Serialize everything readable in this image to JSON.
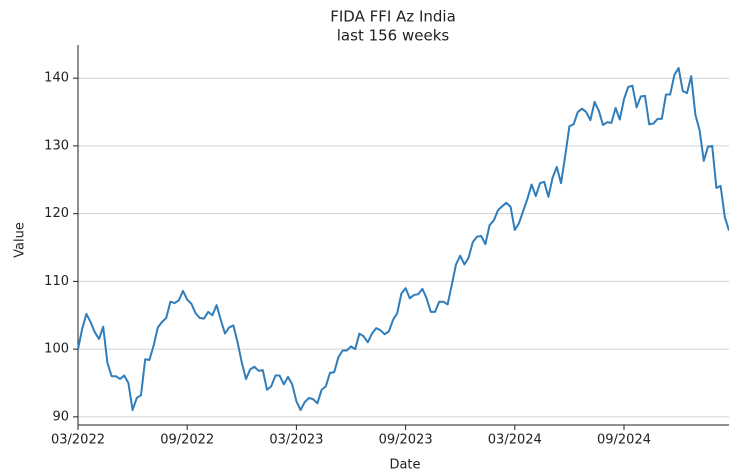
{
  "chart_data": {
    "type": "line",
    "title": "FIDA FFI Az India",
    "subtitle": "last 156 weeks",
    "xlabel": "Date",
    "ylabel": "Value",
    "color": "#2f7dbb",
    "grid": true,
    "ylim": [
      88.8,
      144.9
    ],
    "yticks": [
      90,
      100,
      110,
      120,
      130,
      140
    ],
    "categories": [
      "03/2022",
      null,
      null,
      null,
      null,
      null,
      null,
      null,
      null,
      null,
      null,
      null,
      null,
      null,
      null,
      null,
      null,
      null,
      null,
      null,
      null,
      null,
      null,
      null,
      null,
      null,
      "09/2022",
      null,
      null,
      null,
      null,
      null,
      null,
      null,
      null,
      null,
      null,
      null,
      null,
      null,
      null,
      null,
      null,
      null,
      null,
      null,
      null,
      null,
      null,
      null,
      null,
      null,
      "03/2023",
      null,
      null,
      null,
      null,
      null,
      null,
      null,
      null,
      null,
      null,
      null,
      null,
      null,
      null,
      null,
      null,
      null,
      null,
      null,
      null,
      null,
      null,
      null,
      null,
      null,
      "09/2023",
      null,
      null,
      null,
      null,
      null,
      null,
      null,
      null,
      null,
      null,
      null,
      null,
      null,
      null,
      null,
      null,
      null,
      null,
      null,
      null,
      null,
      null,
      null,
      null,
      null,
      "03/2024",
      null,
      null,
      null,
      null,
      null,
      null,
      null,
      null,
      null,
      null,
      null,
      null,
      null,
      null,
      null,
      null,
      null,
      null,
      null,
      null,
      null,
      null,
      null,
      null,
      null,
      "09/2024",
      null,
      null,
      null,
      null,
      null,
      null,
      null,
      null,
      null,
      null,
      null,
      null,
      null,
      null,
      null,
      null,
      null,
      null,
      null,
      null,
      null,
      null,
      null,
      null,
      null
    ],
    "values": [
      100,
      103,
      105.2,
      104,
      102.5,
      101.5,
      103.3,
      98,
      96,
      96,
      95.6,
      96.1,
      95,
      91,
      92.8,
      93.2,
      98.5,
      98.4,
      100.5,
      103.2,
      104,
      104.6,
      107,
      106.8,
      107.2,
      108.6,
      107.3,
      106.7,
      105.3,
      104.6,
      104.5,
      105.5,
      105,
      106.5,
      104.3,
      102.3,
      103.2,
      103.5,
      101,
      98,
      95.6,
      97,
      97.4,
      96.8,
      96.9,
      94,
      94.5,
      96.1,
      96.1,
      94.8,
      95.9,
      94.8,
      92.3,
      91,
      92.2,
      92.8,
      92.6,
      92,
      94,
      94.5,
      96.5,
      96.6,
      98.8,
      99.8,
      99.8,
      100.4,
      100,
      102.3,
      101.9,
      101,
      102.3,
      103.1,
      102.8,
      102.2,
      102.6,
      104.3,
      105.3,
      108.2,
      109,
      107.5,
      108,
      108.1,
      108.9,
      107.5,
      105.5,
      105.5,
      107,
      107,
      106.6,
      109.5,
      112.5,
      113.8,
      112.5,
      113.5,
      115.8,
      116.6,
      116.7,
      115.5,
      118.3,
      119,
      120.5,
      121.1,
      121.6,
      121,
      117.6,
      118.6,
      120.4,
      122.2,
      124.3,
      122.6,
      124.5,
      124.7,
      122.5,
      125.3,
      126.9,
      124.5,
      128.5,
      132.9,
      133.2,
      135,
      135.5,
      135,
      133.8,
      136.5,
      135.2,
      133.1,
      133.5,
      133.4,
      135.6,
      133.9,
      136.9,
      138.7,
      138.9,
      135.7,
      137.3,
      137.4,
      133.2,
      133.3,
      134,
      134,
      137.6,
      137.6,
      140.5,
      141.5,
      138.1,
      137.8,
      140.3,
      134.6,
      132.3,
      127.8,
      129.9,
      130,
      123.8,
      124.1,
      119.5,
      117.5
    ]
  }
}
